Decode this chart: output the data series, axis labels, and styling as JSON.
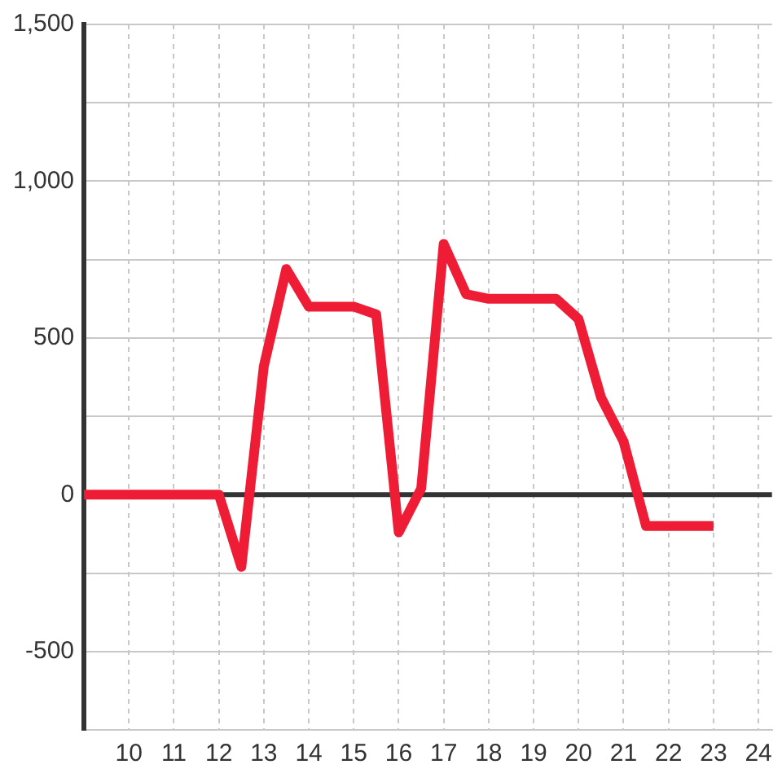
{
  "chart_data": {
    "type": "line",
    "x": [
      9,
      12,
      12.5,
      13,
      13.5,
      14,
      15,
      15.5,
      16,
      16.5,
      17,
      17.5,
      18,
      19.5,
      20,
      20.5,
      21,
      21.5,
      23
    ],
    "series": [
      {
        "color": "#ee1c35",
        "values": [
          0,
          0,
          -230,
          410,
          720,
          600,
          600,
          575,
          -120,
          20,
          800,
          640,
          625,
          625,
          560,
          310,
          170,
          -100,
          -100
        ]
      }
    ],
    "xlim": [
      9,
      24.3
    ],
    "xticks": [
      10,
      11,
      12,
      13,
      14,
      15,
      16,
      17,
      18,
      19,
      20,
      21,
      22,
      23,
      24
    ],
    "ylim": [
      -750,
      1500
    ],
    "yticks": [
      {
        "value": -750,
        "label": null
      },
      -500,
      {
        "value": -250,
        "label": null
      },
      0,
      {
        "value": 250,
        "label": null
      },
      500,
      {
        "value": 750,
        "label": null
      },
      {
        "value": 1000,
        "label": "1,000"
      },
      {
        "value": 1250,
        "label": null
      },
      {
        "value": 1500,
        "label": "1,500"
      }
    ],
    "grid": true,
    "marker": "none",
    "line_style": "solid",
    "ref_lines": [
      {
        "axis": "y",
        "value": 0,
        "color": "#333333"
      }
    ]
  }
}
